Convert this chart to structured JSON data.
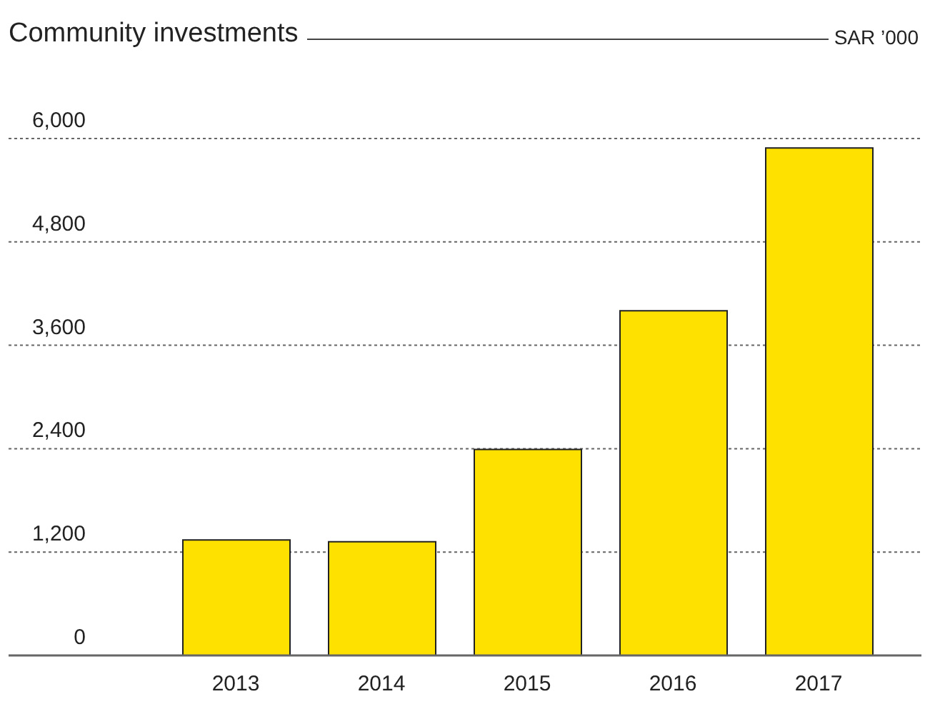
{
  "chart_data": {
    "type": "bar",
    "title": "Community investments",
    "ylabel": "SAR ’000",
    "categories": [
      "2013",
      "2014",
      "2015",
      "2016",
      "2017"
    ],
    "values": [
      1340,
      1320,
      2390,
      4000,
      5890
    ],
    "color": "#ffe100",
    "ylim": [
      0,
      6000
    ],
    "yticks": [
      {
        "value": 0,
        "label": "0"
      },
      {
        "value": 1200,
        "label": "1,200"
      },
      {
        "value": 2400,
        "label": "2,400"
      },
      {
        "value": 3600,
        "label": "3,600"
      },
      {
        "value": 4800,
        "label": "4,800"
      },
      {
        "value": 6000,
        "label": "6,000"
      }
    ],
    "grid": "y",
    "legend": false
  }
}
